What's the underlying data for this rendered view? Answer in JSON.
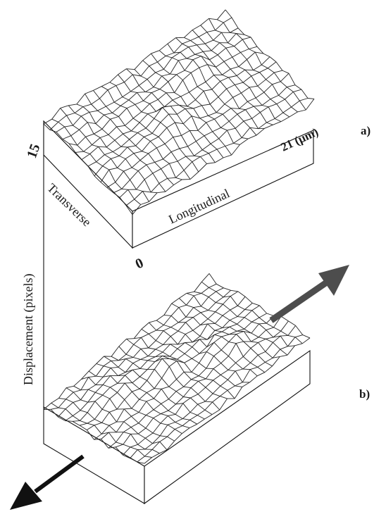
{
  "figure": {
    "panel_a_label": "a)",
    "panel_b_label": "b)",
    "axis_max_label": "15",
    "axis_zero_label": "0",
    "longitudinal_end_label": "21 (μm)",
    "transverse_label": "Transverse",
    "longitudinal_label": "Longitudinal",
    "vertical_axis_label": "Displacement (pixels)",
    "arrow_color": "#4d4d4d"
  }
}
